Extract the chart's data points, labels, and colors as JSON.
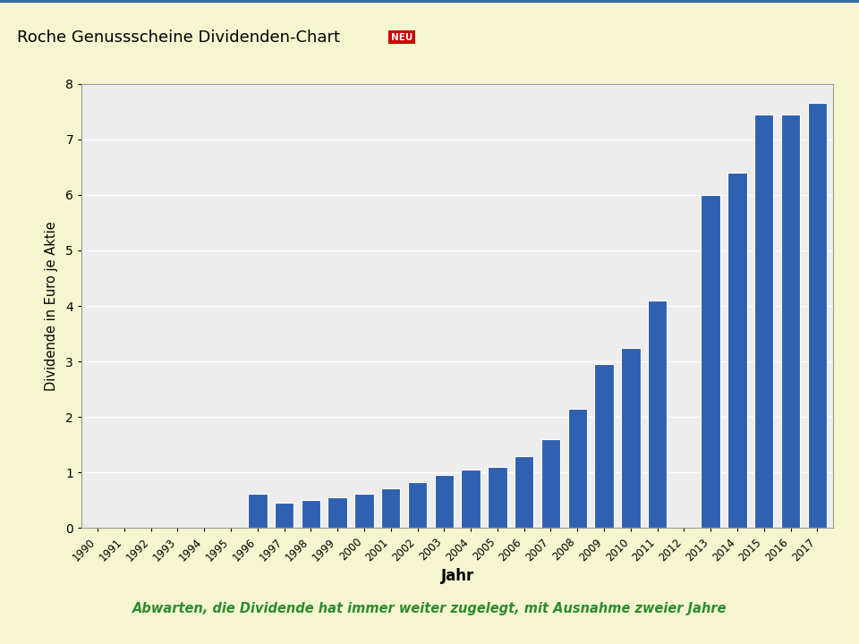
{
  "years": [
    1990,
    1991,
    1992,
    1993,
    1994,
    1995,
    1996,
    1997,
    1998,
    1999,
    2000,
    2001,
    2002,
    2003,
    2004,
    2005,
    2006,
    2007,
    2008,
    2009,
    2010,
    2011,
    2012,
    2013,
    2014,
    2015,
    2016,
    2017
  ],
  "values": [
    0,
    0,
    0,
    0,
    0,
    0,
    0.62,
    0.45,
    0.5,
    0.55,
    0.62,
    0.72,
    0.82,
    0.95,
    1.05,
    1.1,
    1.3,
    1.6,
    2.15,
    2.95,
    3.25,
    4.1,
    0,
    6.0,
    6.4,
    7.45,
    7.45,
    7.65
  ],
  "bar_color": "#3060B0",
  "outer_background": "#F5F5D0",
  "plot_bg_color": "#EDEDED",
  "title_main": "Roche Genussscheine Dividenden-Chart",
  "title_neu": "NEU",
  "xlabel": "Jahr",
  "ylabel": "Dividende in Euro je Aktie",
  "ylim": [
    0,
    8
  ],
  "yticks": [
    0,
    1,
    2,
    3,
    4,
    5,
    6,
    7,
    8
  ],
  "subtitle": "Abwarten, die Dividende hat immer weiter zugelegt, mit Ausnahme zweier Jahre",
  "subtitle_color": "#2E8B2E",
  "title_color": "#000000",
  "neu_bg_color": "#CC0000",
  "neu_text_color": "#FFFFFF",
  "header_line_color": "#3366AA",
  "header_bg": "#FFFFFF",
  "spine_color": "#999999"
}
